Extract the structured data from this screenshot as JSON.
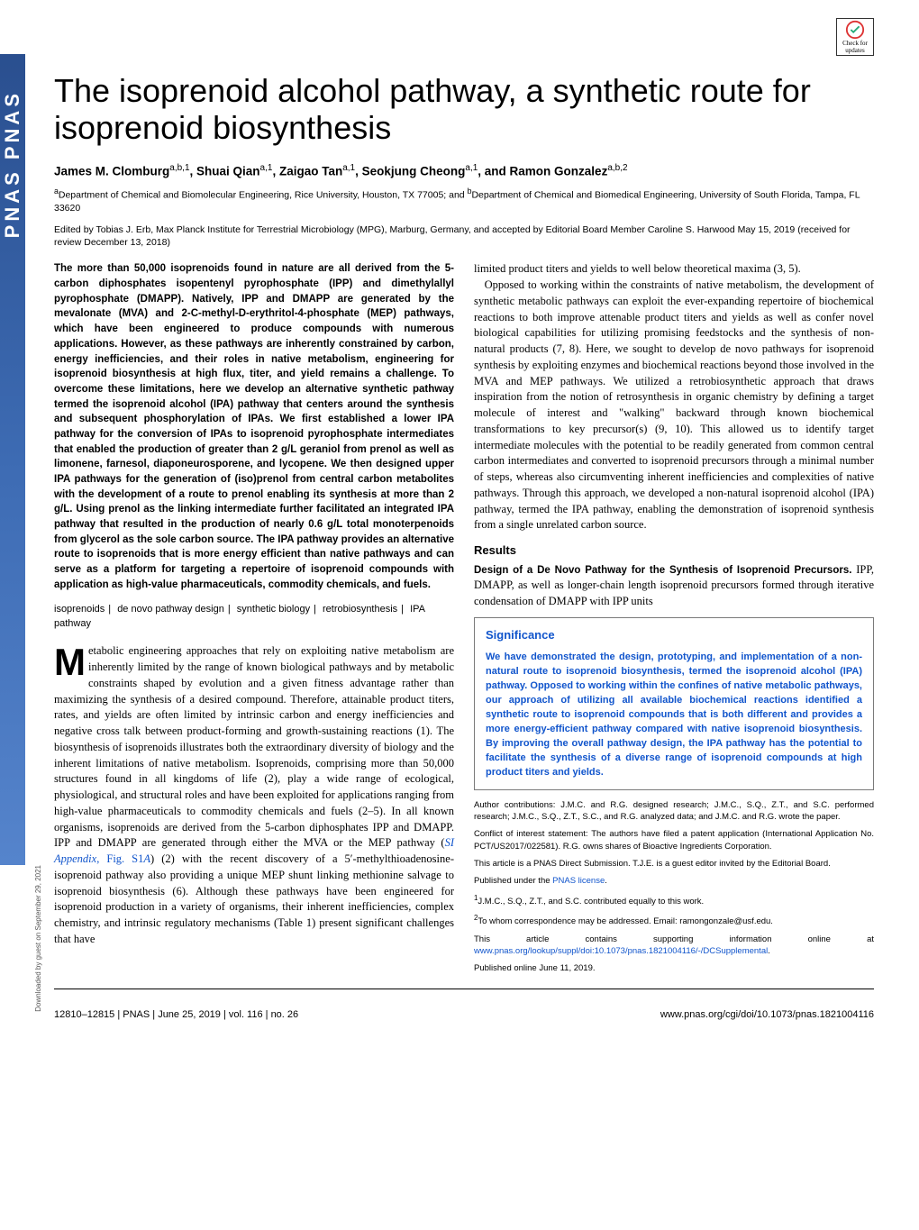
{
  "colors": {
    "link": "#1155cc",
    "sidebar_gradient_top": "#2a4f8f",
    "sidebar_gradient_mid": "#3d6bb3",
    "sidebar_gradient_bottom": "#5584cc",
    "significance_border": "#7a7a7a",
    "significance_text": "#1155cc",
    "body_text": "#000000",
    "background": "#ffffff"
  },
  "fonts": {
    "title_family": "Arial",
    "title_size_pt": 27,
    "body_family": "Georgia",
    "body_size_pt": 9.5,
    "abstract_size_pt": 8.5,
    "small_notes_size_pt": 7
  },
  "sidebar": {
    "text": "PNAS   PNAS"
  },
  "check_updates": {
    "line1": "Check for",
    "line2": "updates"
  },
  "title": "The isoprenoid alcohol pathway, a synthetic route for isoprenoid biosynthesis",
  "authors_html": "James M. Clomburg<sup>a,b,1</sup>, Shuai Qian<sup>a,1</sup>, Zaigao Tan<sup>a,1</sup>, Seokjung Cheong<sup>a,1</sup>, and Ramon Gonzalez<sup>a,b,2</sup>",
  "affiliations_html": "<sup>a</sup>Department of Chemical and Biomolecular Engineering, Rice University, Houston, TX 77005; and <sup>b</sup>Department of Chemical and Biomedical Engineering, University of South Florida, Tampa, FL 33620",
  "edited_by": "Edited by Tobias J. Erb, Max Planck Institute for Terrestrial Microbiology (MPG), Marburg, Germany, and accepted by Editorial Board Member Caroline S. Harwood May 15, 2019 (received for review December 13, 2018)",
  "abstract": "The more than 50,000 isoprenoids found in nature are all derived from the 5-carbon diphosphates isopentenyl pyrophosphate (IPP) and dimethylallyl pyrophosphate (DMAPP). Natively, IPP and DMAPP are generated by the mevalonate (MVA) and 2-C-methyl-D-erythritol-4-phosphate (MEP) pathways, which have been engineered to produce compounds with numerous applications. However, as these pathways are inherently constrained by carbon, energy inefficiencies, and their roles in native metabolism, engineering for isoprenoid biosynthesis at high flux, titer, and yield remains a challenge. To overcome these limitations, here we develop an alternative synthetic pathway termed the isoprenoid alcohol (IPA) pathway that centers around the synthesis and subsequent phosphorylation of IPAs. We first established a lower IPA pathway for the conversion of IPAs to isoprenoid pyrophosphate intermediates that enabled the production of greater than 2 g/L geraniol from prenol as well as limonene, farnesol, diaponeurosporene, and lycopene. We then designed upper IPA pathways for the generation of (iso)prenol from central carbon metabolites with the development of a route to prenol enabling its synthesis at more than 2 g/L. Using prenol as the linking intermediate further facilitated an integrated IPA pathway that resulted in the production of nearly 0.6 g/L total monoterpenoids from glycerol as the sole carbon source. The IPA pathway provides an alternative route to isoprenoids that is more energy efficient than native pathways and can serve as a platform for targeting a repertoire of isoprenoid compounds with application as high-value pharmaceuticals, commodity chemicals, and fuels.",
  "keywords": [
    "isoprenoids",
    "de novo pathway design",
    "synthetic biology",
    "retrobiosynthesis",
    "IPA pathway"
  ],
  "col1_body_html": "<span class=\"dropcap\">M</span>etabolic engineering approaches that rely on exploiting native metabolism are inherently limited by the range of known biological pathways and by metabolic constraints shaped by evolution and a given fitness advantage rather than maximizing the synthesis of a desired compound. Therefore, attainable product titers, rates, and yields are often limited by intrinsic carbon and energy inefficiencies and negative cross talk between product-forming and growth-sustaining reactions (1). The biosynthesis of isoprenoids illustrates both the extraordinary diversity of biology and the inherent limitations of native metabolism. Isoprenoids, comprising more than 50,000 structures found in all kingdoms of life (2), play a wide range of ecological, physiological, and structural roles and have been exploited for applications ranging from high-value pharmaceuticals to commodity chemicals and fuels (2–5). In all known organisms, isoprenoids are derived from the 5-carbon diphosphates IPP and DMAPP. IPP and DMAPP are generated through either the MVA or the MEP pathway (<span class=\"link\"><i>SI Appendix</i>, Fig. S1<i>A</i></span>) (2) with the recent discovery of a 5′-methylthioadenosine-isoprenoid pathway also providing a unique MEP shunt linking methionine salvage to isoprenoid biosynthesis (6). Although these pathways have been engineered for isoprenoid production in a variety of organisms, their inherent inefficiencies, complex chemistry, and intrinsic regulatory mechanisms (Table 1) present significant challenges that have",
  "col2_intro_html": "limited product titers and yields to well below theoretical maxima (3, 5).<br>&nbsp;&nbsp;&nbsp;Opposed to working within the constraints of native metabolism, the development of synthetic metabolic pathways can exploit the ever-expanding repertoire of biochemical reactions to both improve attenable product titers and yields as well as confer novel biological capabilities for utilizing promising feedstocks and the synthesis of non-natural products (7, 8). Here, we sought to develop de novo pathways for isoprenoid synthesis by exploiting enzymes and biochemical reactions beyond those involved in the MVA and MEP pathways. We utilized a retrobiosynthetic approach that draws inspiration from the notion of retrosynthesis in organic chemistry by defining a target molecule of interest and \"walking\" backward through known biochemical transformations to key precursor(s) (9, 10). This allowed us to identify target intermediate molecules with the potential to be readily generated from common central carbon intermediates and converted to isoprenoid precursors through a minimal number of steps, whereas also circumventing inherent inefficiencies and complexities of native pathways. Through this approach, we developed a non-natural isoprenoid alcohol (IPA) pathway, termed the IPA pathway, enabling the demonstration of isoprenoid synthesis from a single unrelated carbon source.",
  "results_head": "Results",
  "results_sub": "Design of a De Novo Pathway for the Synthesis of Isoprenoid Precursors.",
  "results_text": "IPP, DMAPP, as well as longer-chain length isoprenoid precursors formed through iterative condensation of DMAPP with IPP units",
  "significance": {
    "title": "Significance",
    "text": "We have demonstrated the design, prototyping, and implementation of a non-natural route to isoprenoid biosynthesis, termed the isoprenoid alcohol (IPA) pathway. Opposed to working within the confines of native metabolic pathways, our approach of utilizing all available biochemical reactions identified a synthetic route to isoprenoid compounds that is both different and provides a more energy-efficient pathway compared with native isoprenoid biosynthesis. By improving the overall pathway design, the IPA pathway has the potential to facilitate the synthesis of a diverse range of isoprenoid compounds at high product titers and yields."
  },
  "notes": {
    "contrib": "Author contributions: J.M.C. and R.G. designed research; J.M.C., S.Q., Z.T., and S.C. performed research; J.M.C., S.Q., Z.T., S.C., and R.G. analyzed data; and J.M.C. and R.G. wrote the paper.",
    "coi": "Conflict of interest statement: The authors have filed a patent application (International Application No. PCT/US2017/022581). R.G. owns shares of Bioactive Ingredients Corporation.",
    "submission": "This article is a PNAS Direct Submission. T.J.E. is a guest editor invited by the Editorial Board.",
    "license_prefix": "Published under the ",
    "license_link": "PNAS license",
    "equal": "J.M.C., S.Q., Z.T., and S.C. contributed equally to this work.",
    "corr": "To whom correspondence may be addressed. Email: ramongonzale@usf.edu.",
    "si_prefix": "This article contains supporting information online at ",
    "si_link": "www.pnas.org/lookup/suppl/doi:10.1073/pnas.1821004116/-/DCSupplemental",
    "pub_date": "Published online June 11, 2019."
  },
  "footer": {
    "left": "12810–12815  |  PNAS  |  June 25, 2019  |  vol. 116  |  no. 26",
    "right": "www.pnas.org/cgi/doi/10.1073/pnas.1821004116"
  },
  "download_note": "Downloaded by guest on September 29, 2021"
}
